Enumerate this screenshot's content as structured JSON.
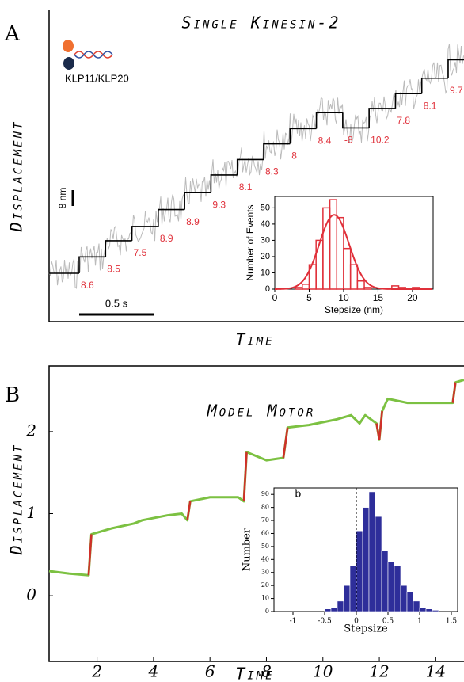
{
  "chart_data": [
    {
      "type": "steps",
      "panel_label": "A",
      "title": "Single Kinesin-2",
      "y_label": "Displacement",
      "x_label": "Time",
      "legend_label": "KLP11/KLP20",
      "scale_bar_labels": [
        "8 nm",
        "0.5 s"
      ],
      "values": [
        8.6,
        8.5,
        7.5,
        8.9,
        8.9,
        9.3,
        8.1,
        8.3,
        8.0,
        8.4,
        -8.0,
        10.2,
        7.8,
        8.1,
        9.7
      ],
      "color": "#000000",
      "label_color": "#e0303a"
    },
    {
      "type": "histogram",
      "x_label": "Stepsize (nm)",
      "y_label": "Number of Events",
      "color": "#e0303a",
      "bins": [
        3,
        4,
        5,
        6,
        7,
        8,
        9,
        10,
        11,
        12,
        13,
        14,
        15,
        16,
        17,
        18,
        19,
        20,
        21,
        22
      ],
      "counts": [
        1,
        3,
        15,
        30,
        50,
        55,
        44,
        25,
        15,
        5,
        1,
        0,
        0,
        0,
        2,
        1,
        0,
        1,
        0
      ],
      "xlim": [
        0,
        23
      ],
      "ylim": [
        0,
        57
      ],
      "xticks": [
        0,
        5,
        10,
        15,
        20
      ],
      "yticks": [
        0,
        10,
        20,
        30,
        40,
        50
      ]
    },
    {
      "type": "line",
      "panel_label": "B",
      "title": "Model Motor",
      "y_label": "Displacement",
      "x_label": "Time",
      "color": "#7cc142",
      "jump_color": "#d0302a",
      "x": [
        0.3,
        1.0,
        1.7,
        1.8,
        2.5,
        3.3,
        3.6,
        4.5,
        5.0,
        5.2,
        5.3,
        6.0,
        7.0,
        7.2,
        7.3,
        8.0,
        8.6,
        8.75,
        9.5,
        10.5,
        11.0,
        11.3,
        11.5,
        11.9,
        12.0,
        12.1,
        12.3,
        13.0,
        14.6,
        14.7,
        15.0
      ],
      "values": [
        0.3,
        0.27,
        0.25,
        0.75,
        0.82,
        0.88,
        0.92,
        0.98,
        1.0,
        0.92,
        1.15,
        1.2,
        1.2,
        1.15,
        1.75,
        1.65,
        1.68,
        2.05,
        2.08,
        2.15,
        2.2,
        2.1,
        2.2,
        2.1,
        1.9,
        2.25,
        2.4,
        2.35,
        2.35,
        2.6,
        2.63
      ],
      "xlim": [
        0.3,
        15
      ],
      "ylim": [
        -0.8,
        2.8
      ],
      "xticks": [
        2,
        4,
        6,
        8,
        10,
        12,
        14
      ],
      "yticks": [
        0,
        1,
        2
      ]
    },
    {
      "type": "histogram",
      "panel_label": "b",
      "x_label": "Stepsize",
      "y_label": "Number",
      "color": "#2e2e9a",
      "bins": [
        -0.5,
        -0.4,
        -0.3,
        -0.2,
        -0.1,
        0,
        0.1,
        0.2,
        0.3,
        0.4,
        0.5,
        0.6,
        0.7,
        0.8,
        0.9,
        1.0,
        1.1,
        1.2,
        1.3
      ],
      "counts": [
        2,
        3,
        8,
        20,
        35,
        62,
        80,
        92,
        73,
        47,
        38,
        35,
        20,
        15,
        8,
        3,
        2,
        1
      ],
      "xlim": [
        -1.3,
        1.6
      ],
      "ylim": [
        0,
        95
      ],
      "xticks": [
        -1,
        -0.5,
        0,
        0.5,
        1,
        1.5
      ],
      "yticks": [
        0,
        10,
        20,
        30,
        40,
        50,
        60,
        70,
        80,
        90
      ]
    }
  ]
}
